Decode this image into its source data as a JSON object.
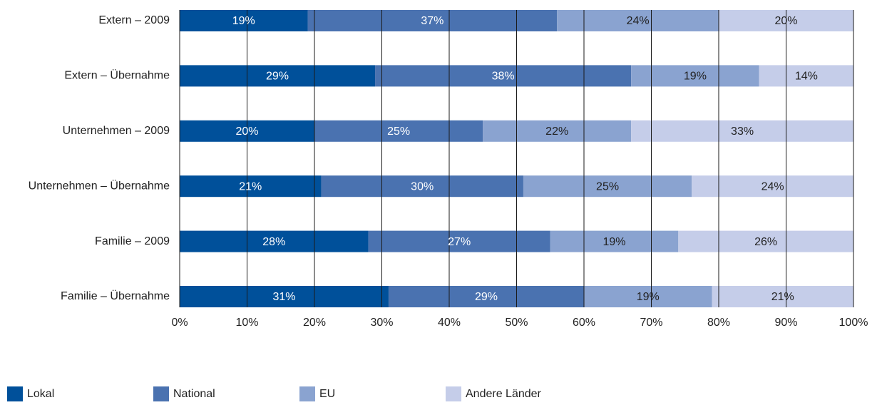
{
  "chart_data": {
    "type": "stacked_barh",
    "categories": [
      "Extern – 2009",
      "Extern – Übernahme",
      "Unternehmen – 2009",
      "Unternehmen – Übernahme",
      "Familie – 2009",
      "Familie – Übernahme"
    ],
    "series": [
      {
        "name": "Lokal",
        "color": "#00509a",
        "values": [
          19,
          29,
          20,
          21,
          28,
          31
        ],
        "value_labels": [
          "19%",
          "29%",
          "20%",
          "21%",
          "28%",
          "31%"
        ]
      },
      {
        "name": "National",
        "color": "#4a72b0",
        "values": [
          37,
          38,
          25,
          30,
          27,
          29
        ],
        "value_labels": [
          "37%",
          "38%",
          "25%",
          "30%",
          "27%",
          "29%"
        ]
      },
      {
        "name": "EU",
        "color": "#8aa3d0",
        "values": [
          24,
          19,
          22,
          25,
          19,
          19
        ],
        "value_labels": [
          "24%",
          "19%",
          "22%",
          "25%",
          "19%",
          "19%"
        ]
      },
      {
        "name": "Andere Länder",
        "color": "#c5cde9",
        "values": [
          20,
          14,
          33,
          24,
          26,
          21
        ],
        "value_labels": [
          "20%",
          "14%",
          "33%",
          "24%",
          "26%",
          "21%"
        ]
      }
    ],
    "xlim": [
      0,
      100
    ],
    "xticks": [
      {
        "value": 0,
        "label": "0%"
      },
      {
        "value": 10,
        "label": "10%"
      },
      {
        "value": 20,
        "label": "20%"
      },
      {
        "value": 30,
        "label": "30%"
      },
      {
        "value": 40,
        "label": "40%"
      },
      {
        "value": 50,
        "label": "50%"
      },
      {
        "value": 60,
        "label": "60%"
      },
      {
        "value": 70,
        "label": "70%"
      },
      {
        "value": 80,
        "label": "80%"
      },
      {
        "value": 90,
        "label": "90%"
      },
      {
        "value": 100,
        "label": "100%"
      }
    ],
    "grid": true,
    "legend": "bottom"
  }
}
